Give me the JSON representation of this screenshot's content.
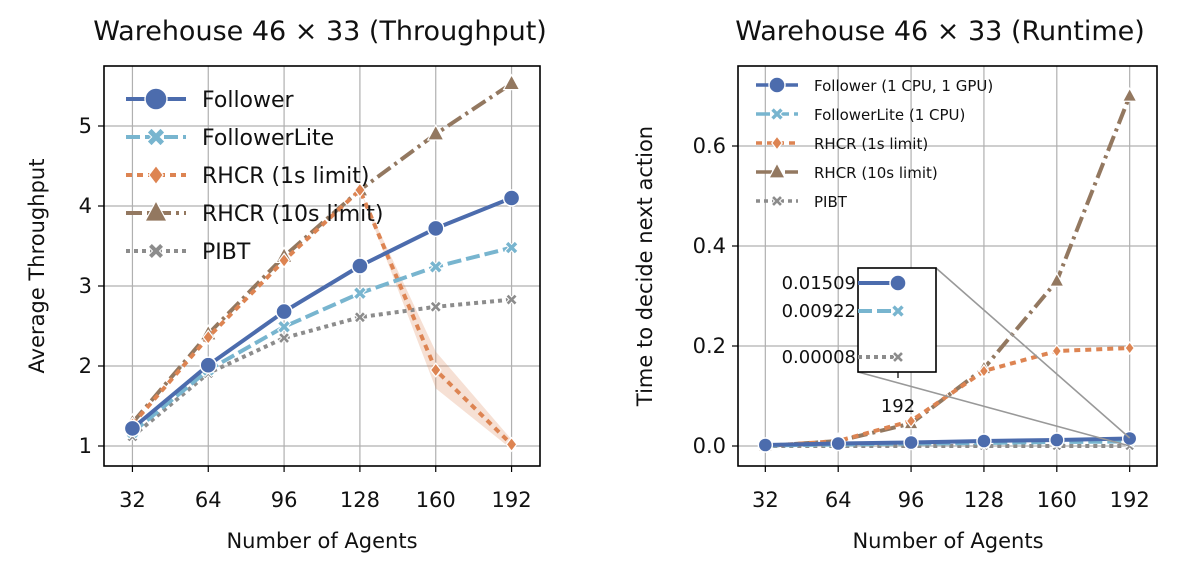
{
  "colors": {
    "follower": "#4c6cad",
    "followerlite": "#78b5cf",
    "rhcr1": "#dd8452",
    "rhcr10": "#937860",
    "pibt": "#8c8c8c",
    "grid": "#b0b0b0"
  },
  "chart_data": [
    {
      "type": "line",
      "title": "Warehouse 46 × 33 (Throughput)",
      "xlabel": "Number of Agents",
      "ylabel": "Average Throughput",
      "x": [
        32,
        64,
        96,
        128,
        160,
        192
      ],
      "xticks": [
        "32",
        "64",
        "96",
        "128",
        "160",
        "192"
      ],
      "yticks": [
        "1",
        "2",
        "3",
        "4",
        "5"
      ],
      "ylim": [
        0.75,
        5.75
      ],
      "grid": true,
      "legend": "top-left",
      "series": [
        {
          "name": "Follower",
          "values": [
            1.22,
            2.01,
            2.68,
            3.25,
            3.72,
            4.1
          ]
        },
        {
          "name": "FollowerLite",
          "values": [
            1.17,
            1.95,
            2.49,
            2.91,
            3.24,
            3.48
          ]
        },
        {
          "name": "RHCR (1s limit)",
          "values": [
            1.27,
            2.36,
            3.32,
            4.2,
            1.95,
            1.02
          ],
          "band": [
            null,
            null,
            null,
            null,
            [
              1.72,
              2.18
            ],
            [
              0.96,
              1.08
            ]
          ]
        },
        {
          "name": "RHCR (10s limit)",
          "values": [
            1.29,
            2.4,
            3.37,
            4.2,
            4.9,
            5.53
          ]
        },
        {
          "name": "PIBT",
          "values": [
            1.12,
            1.91,
            2.35,
            2.61,
            2.74,
            2.83
          ]
        }
      ]
    },
    {
      "type": "line",
      "title": "Warehouse 46 × 33  (Runtime)",
      "xlabel": "Number of Agents",
      "ylabel": "Time to decide next action",
      "x": [
        32,
        64,
        96,
        128,
        160,
        192
      ],
      "xticks": [
        "32",
        "64",
        "96",
        "128",
        "160",
        "192"
      ],
      "yticks": [
        "0.0",
        "0.2",
        "0.4",
        "0.6"
      ],
      "ylim": [
        -0.04,
        0.76
      ],
      "grid": true,
      "legend": "top-left",
      "series": [
        {
          "name": "Follower (1 CPU, 1 GPU)",
          "values": [
            0.002,
            0.005,
            0.007,
            0.01,
            0.012,
            0.015
          ]
        },
        {
          "name": "FollowerLite (1 CPU)",
          "values": [
            0.001,
            0.003,
            0.005,
            0.006,
            0.008,
            0.009
          ]
        },
        {
          "name": "RHCR (1s limit)",
          "values": [
            0.0,
            0.01,
            0.05,
            0.15,
            0.19,
            0.196
          ]
        },
        {
          "name": "RHCR (10s limit)",
          "values": [
            0.0,
            0.01,
            0.045,
            0.155,
            0.33,
            0.7
          ]
        },
        {
          "name": "PIBT",
          "values": [
            0.0,
            0.0,
            0.0,
            0.0,
            0.0,
            0.0001
          ]
        }
      ],
      "inset": {
        "x_label": "192",
        "labels": [
          "0.01509",
          "0.00922",
          "0.00008"
        ]
      }
    }
  ]
}
